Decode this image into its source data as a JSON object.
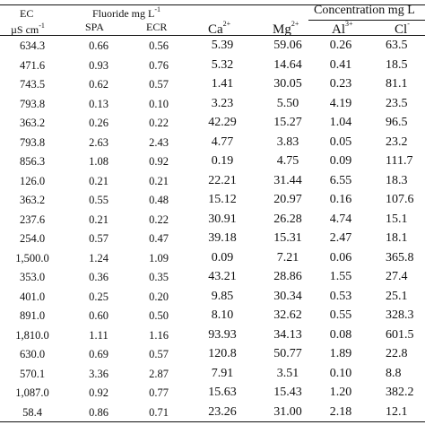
{
  "table": {
    "header": {
      "ec_line1": "EC",
      "ec_line2": "µS cm",
      "ec_line2_sup": "-1",
      "fluoride_label": "Fluoride mg L",
      "fluoride_sup": "-1",
      "concentration_label": "Concentration mg L",
      "spa": "SPA",
      "ecr": "ECR",
      "ca": "Ca",
      "ca_sup": "2+",
      "mg": "Mg",
      "mg_sup": "2+",
      "al": "Al",
      "al_sup": "3+",
      "cl": "Cl",
      "cl_sup": "-"
    },
    "rows": [
      [
        "634.3",
        "0.66",
        "0.56",
        "5.39",
        "59.06",
        "0.26",
        "63.5"
      ],
      [
        "471.6",
        "0.93",
        "0.76",
        "5.32",
        "14.64",
        "0.41",
        "18.5"
      ],
      [
        "743.5",
        "0.62",
        "0.57",
        "1.41",
        "30.05",
        "0.23",
        "81.1"
      ],
      [
        "793.8",
        "0.13",
        "0.10",
        "3.23",
        "5.50",
        "4.19",
        "23.5"
      ],
      [
        "363.2",
        "0.26",
        "0.22",
        "42.29",
        "15.27",
        "1.04",
        "96.5"
      ],
      [
        "793.8",
        "2.63",
        "2.43",
        "4.77",
        "3.83",
        "0.05",
        "23.2"
      ],
      [
        "856.3",
        "1.08",
        "0.92",
        "0.19",
        "4.75",
        "0.09",
        "111.7"
      ],
      [
        "126.0",
        "0.21",
        "0.21",
        "22.21",
        "31.44",
        "6.55",
        "18.3"
      ],
      [
        "363.2",
        "0.55",
        "0.48",
        "15.12",
        "20.97",
        "0.16",
        "107.6"
      ],
      [
        "237.6",
        "0.21",
        "0.22",
        "30.91",
        "26.28",
        "4.74",
        "15.1"
      ],
      [
        "254.0",
        "0.57",
        "0.47",
        "39.18",
        "15.31",
        "2.47",
        "18.1"
      ],
      [
        "1,500.0",
        "1.24",
        "1.09",
        "0.09",
        "7.21",
        "0.06",
        "365.8"
      ],
      [
        "353.0",
        "0.36",
        "0.35",
        "43.21",
        "28.86",
        "1.55",
        "27.4"
      ],
      [
        "401.0",
        "0.25",
        "0.20",
        "9.85",
        "30.34",
        "0.53",
        "25.1"
      ],
      [
        "891.0",
        "0.60",
        "0.50",
        "8.10",
        "32.62",
        "0.55",
        "328.3"
      ],
      [
        "1,810.0",
        "1.11",
        "1.16",
        "93.93",
        "34.13",
        "0.08",
        "601.5"
      ],
      [
        "630.0",
        "0.69",
        "0.57",
        "120.8",
        "50.77",
        "1.89",
        "22.8"
      ],
      [
        "570.1",
        "3.36",
        "2.87",
        "7.91",
        "3.51",
        "0.10",
        "8.8"
      ],
      [
        "1,087.0",
        "0.92",
        "0.77",
        "15.63",
        "15.43",
        "1.20",
        "382.2"
      ],
      [
        "58.4",
        "0.86",
        "0.71",
        "23.26",
        "31.00",
        "2.18",
        "12.1"
      ]
    ]
  }
}
